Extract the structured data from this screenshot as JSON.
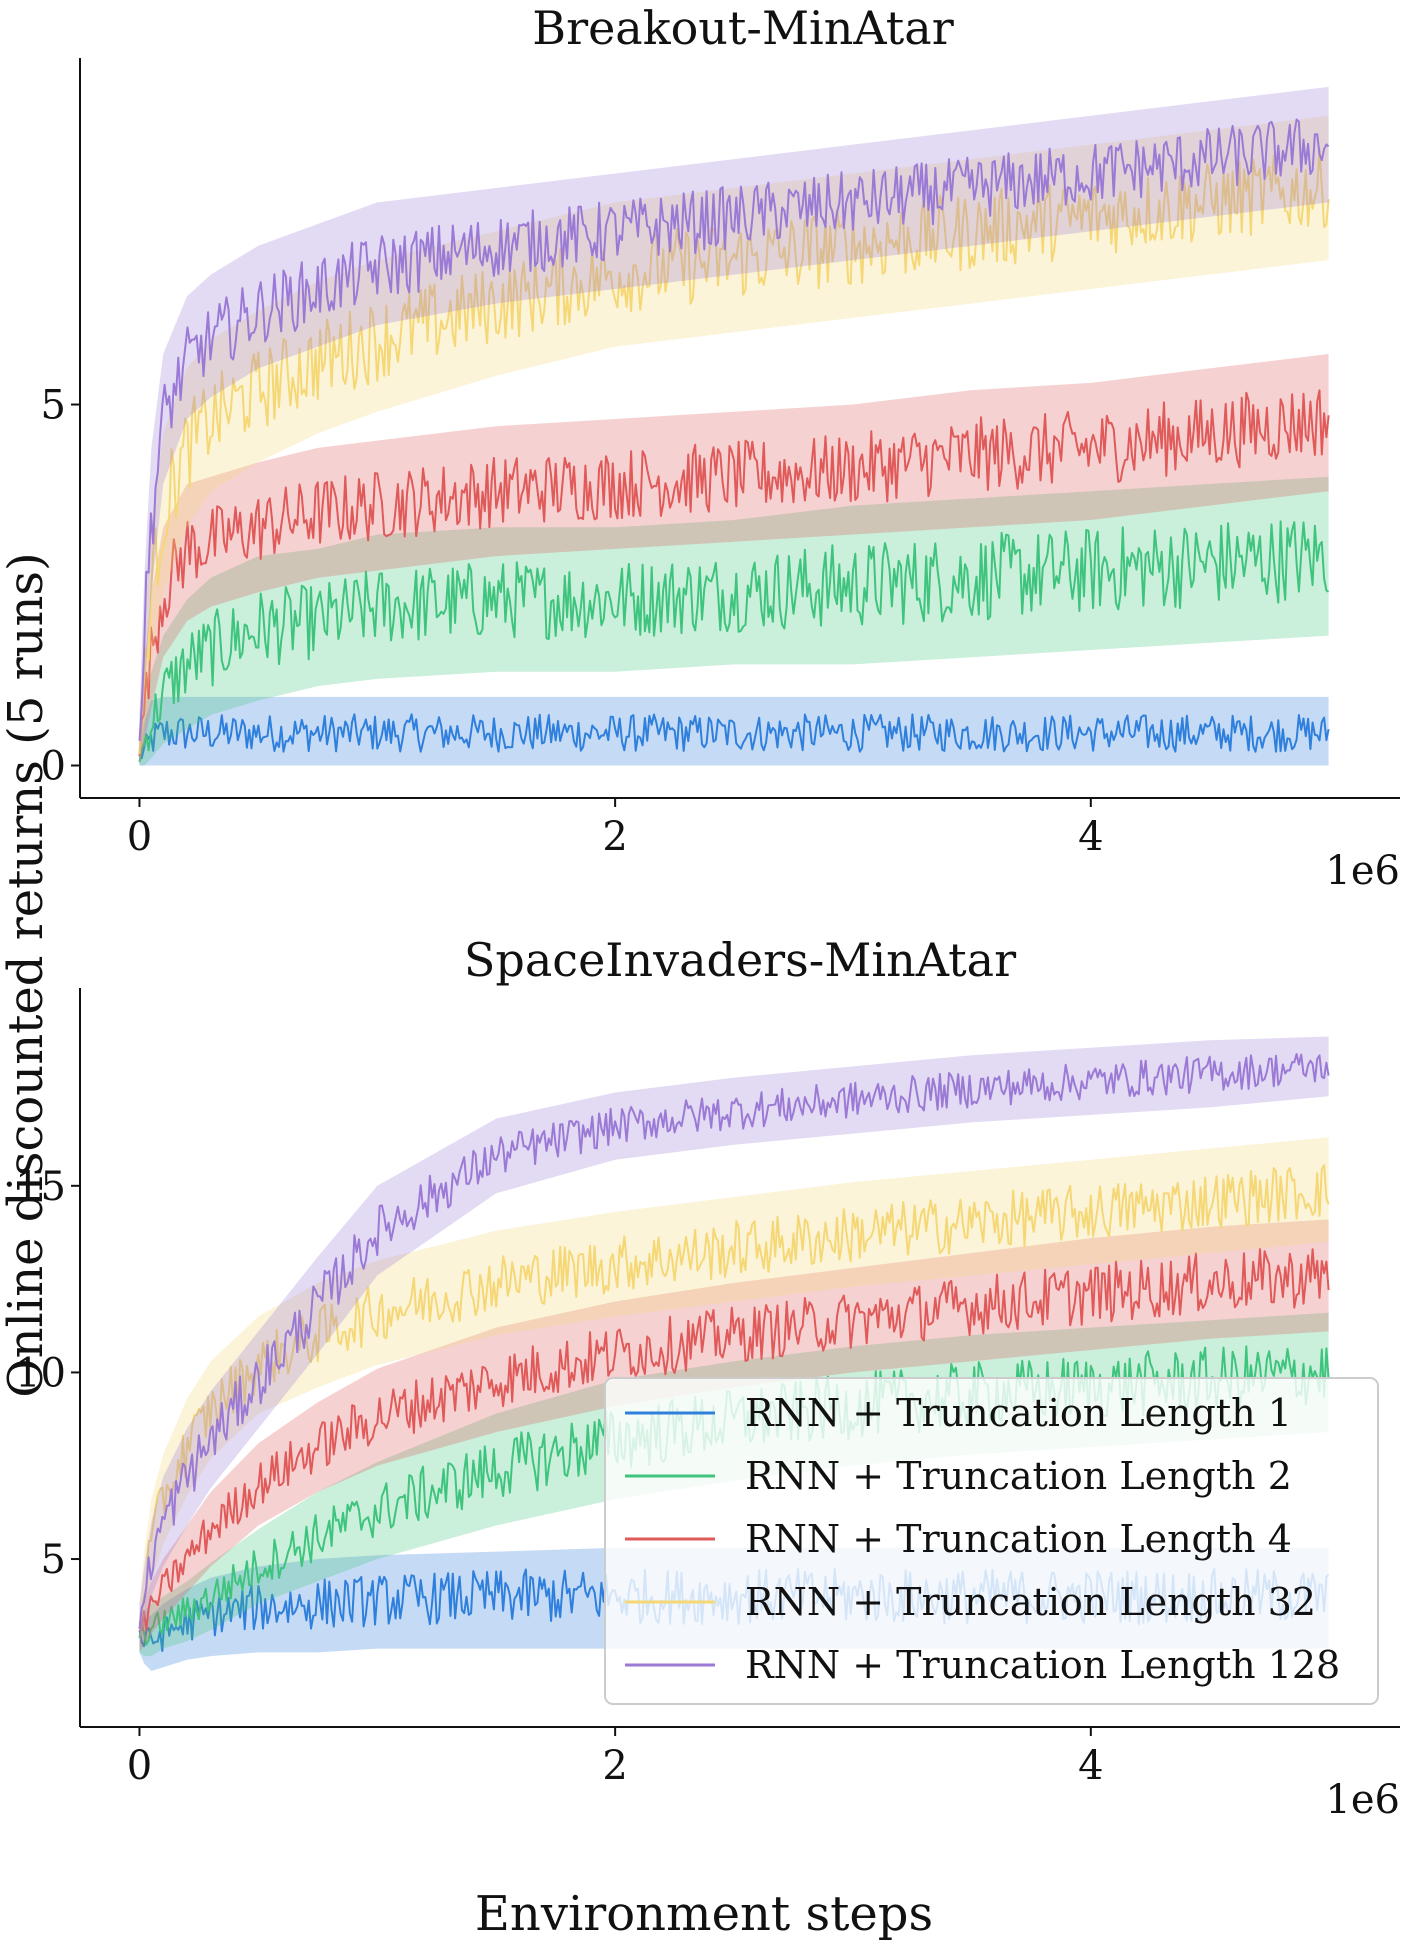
{
  "figure": {
    "ylabel": "Online discounted returns (5 runs)",
    "xlabel": "Environment steps"
  },
  "legend": {
    "placement": "lower-right of bottom panel",
    "entries": [
      "RNN + Truncation Length 1",
      "RNN + Truncation Length 2",
      "RNN + Truncation Length 4",
      "RNN + Truncation Length 32",
      "RNN + Truncation Length 128"
    ]
  },
  "colors": {
    "len1": "#2f7fdc",
    "len2": "#3fc47e",
    "len4": "#e05a5a",
    "len32": "#f5d775",
    "len128": "#9b7ad6"
  },
  "chart_data": [
    {
      "type": "line",
      "title": "Breakout-MinAtar",
      "xlabel": "",
      "ylabel": "",
      "x_scale_label": "1e6",
      "xlim": [
        -0.25,
        5.3
      ],
      "ylim": [
        -0.45,
        9.8
      ],
      "xticks": [
        0,
        2,
        4
      ],
      "xtick_labels": [
        "0",
        "2",
        "4"
      ],
      "yticks": [
        0,
        5
      ],
      "ytick_labels": [
        "0",
        "5"
      ],
      "grid": false,
      "x": [
        0,
        0.02,
        0.05,
        0.1,
        0.2,
        0.3,
        0.5,
        0.75,
        1.0,
        1.5,
        2.0,
        2.5,
        3.0,
        3.5,
        4.0,
        4.5,
        5.0
      ],
      "series": [
        {
          "name": "RNN + Truncation Length 1",
          "color_key": "len1",
          "mean": [
            0.1,
            0.2,
            0.35,
            0.45,
            0.45,
            0.45,
            0.45,
            0.45,
            0.45,
            0.45,
            0.45,
            0.45,
            0.45,
            0.45,
            0.45,
            0.45,
            0.45
          ],
          "lower": [
            0,
            0,
            0,
            0,
            0,
            0,
            0,
            0,
            0,
            0,
            0,
            0,
            0,
            0,
            0,
            0,
            0
          ],
          "upper": [
            0.3,
            0.6,
            0.9,
            0.95,
            0.95,
            0.95,
            0.95,
            0.95,
            0.95,
            0.95,
            0.95,
            0.95,
            0.95,
            0.95,
            0.95,
            0.95,
            0.95
          ]
        },
        {
          "name": "RNN + Truncation Length 2",
          "color_key": "len2",
          "mean": [
            0.1,
            0.3,
            0.6,
            1.0,
            1.4,
            1.6,
            1.9,
            2.0,
            2.2,
            2.3,
            2.3,
            2.4,
            2.5,
            2.6,
            2.7,
            2.8,
            2.9
          ],
          "lower": [
            0,
            0,
            0.1,
            0.3,
            0.5,
            0.7,
            0.9,
            1.1,
            1.2,
            1.3,
            1.3,
            1.4,
            1.4,
            1.5,
            1.6,
            1.7,
            1.8
          ],
          "upper": [
            0.3,
            0.8,
            1.3,
            1.8,
            2.3,
            2.6,
            2.9,
            3.0,
            3.2,
            3.3,
            3.3,
            3.4,
            3.6,
            3.7,
            3.8,
            3.9,
            4.0
          ]
        },
        {
          "name": "RNN + Truncation Length 4",
          "color_key": "len4",
          "mean": [
            0.2,
            0.8,
            1.6,
            2.4,
            3.0,
            3.1,
            3.3,
            3.5,
            3.6,
            3.8,
            3.9,
            4.0,
            4.1,
            4.3,
            4.4,
            4.6,
            4.8
          ],
          "lower": [
            0,
            0.3,
            0.8,
            1.5,
            2.0,
            2.2,
            2.4,
            2.6,
            2.7,
            2.9,
            3.0,
            3.1,
            3.2,
            3.3,
            3.4,
            3.6,
            3.8
          ],
          "upper": [
            0.5,
            1.4,
            2.4,
            3.3,
            3.9,
            4.0,
            4.2,
            4.4,
            4.5,
            4.7,
            4.8,
            4.9,
            5.0,
            5.2,
            5.3,
            5.5,
            5.7
          ]
        },
        {
          "name": "RNN + Truncation Length 32",
          "color_key": "len32",
          "mean": [
            0.2,
            1.2,
            2.4,
            3.5,
            4.4,
            4.8,
            5.2,
            5.6,
            5.9,
            6.4,
            6.8,
            7.0,
            7.2,
            7.4,
            7.6,
            7.8,
            8.0
          ],
          "lower": [
            0,
            0.5,
            1.4,
            2.4,
            3.3,
            3.8,
            4.2,
            4.6,
            4.9,
            5.4,
            5.8,
            6.0,
            6.2,
            6.4,
            6.6,
            6.8,
            7.0
          ],
          "upper": [
            0.6,
            1.9,
            3.4,
            4.6,
            5.5,
            5.9,
            6.3,
            6.7,
            7.0,
            7.4,
            7.8,
            8.0,
            8.2,
            8.4,
            8.6,
            8.8,
            9.0
          ]
        },
        {
          "name": "RNN + Truncation Length 128",
          "color_key": "len128",
          "mean": [
            0.3,
            1.8,
            3.4,
            4.8,
            5.6,
            5.9,
            6.3,
            6.6,
            6.9,
            7.2,
            7.4,
            7.6,
            7.8,
            8.0,
            8.2,
            8.4,
            8.6
          ],
          "lower": [
            0,
            1.0,
            2.4,
            3.9,
            4.8,
            5.1,
            5.5,
            5.8,
            6.1,
            6.4,
            6.6,
            6.8,
            7.0,
            7.2,
            7.4,
            7.6,
            7.8
          ],
          "upper": [
            0.7,
            2.6,
            4.4,
            5.7,
            6.5,
            6.8,
            7.2,
            7.5,
            7.8,
            8.0,
            8.2,
            8.4,
            8.6,
            8.8,
            9.0,
            9.2,
            9.4
          ]
        }
      ]
    },
    {
      "type": "line",
      "title": "SpaceInvaders-MinAtar",
      "xlabel": "",
      "ylabel": "",
      "x_scale_label": "1e6",
      "xlim": [
        -0.25,
        5.3
      ],
      "ylim": [
        0.5,
        20.3
      ],
      "xticks": [
        0,
        2,
        4
      ],
      "xtick_labels": [
        "0",
        "2",
        "4"
      ],
      "yticks": [
        5,
        10,
        15
      ],
      "ytick_labels": [
        "5",
        "10",
        "15"
      ],
      "grid": false,
      "x": [
        0,
        0.02,
        0.05,
        0.1,
        0.2,
        0.3,
        0.5,
        0.75,
        1.0,
        1.5,
        2.0,
        2.5,
        3.0,
        3.5,
        4.0,
        4.5,
        5.0
      ],
      "series": [
        {
          "name": "RNN + Truncation Length 1",
          "color_key": "len1",
          "mean": [
            3.0,
            2.8,
            2.8,
            3.0,
            3.3,
            3.5,
            3.7,
            3.8,
            3.9,
            4.0,
            4.0,
            4.0,
            4.0,
            4.0,
            4.0,
            4.0,
            4.0
          ],
          "lower": [
            2.5,
            2.2,
            2.0,
            2.1,
            2.3,
            2.4,
            2.5,
            2.5,
            2.6,
            2.6,
            2.6,
            2.6,
            2.6,
            2.6,
            2.6,
            2.6,
            2.6
          ],
          "upper": [
            3.5,
            3.4,
            3.5,
            3.8,
            4.2,
            4.5,
            4.8,
            5.0,
            5.1,
            5.2,
            5.3,
            5.3,
            5.3,
            5.3,
            5.3,
            5.3,
            5.3
          ]
        },
        {
          "name": "RNN + Truncation Length 2",
          "color_key": "len2",
          "mean": [
            3.0,
            3.0,
            3.1,
            3.3,
            3.6,
            4.0,
            4.8,
            5.6,
            6.3,
            7.4,
            8.2,
            8.7,
            9.1,
            9.4,
            9.6,
            9.8,
            10.0
          ],
          "lower": [
            2.5,
            2.4,
            2.4,
            2.6,
            2.8,
            3.1,
            3.8,
            4.4,
            5.0,
            5.9,
            6.6,
            7.1,
            7.5,
            7.8,
            8.0,
            8.2,
            8.4
          ],
          "upper": [
            3.5,
            3.6,
            3.8,
            4.0,
            4.4,
            4.9,
            5.8,
            6.8,
            7.6,
            8.9,
            9.8,
            10.3,
            10.7,
            11.0,
            11.2,
            11.4,
            11.6
          ]
        },
        {
          "name": "RNN + Truncation Length 4",
          "color_key": "len4",
          "mean": [
            3.0,
            3.3,
            3.7,
            4.2,
            5.0,
            5.8,
            7.0,
            8.0,
            8.8,
            9.8,
            10.5,
            11.0,
            11.4,
            11.8,
            12.1,
            12.4,
            12.6
          ],
          "lower": [
            2.5,
            2.7,
            3.0,
            3.4,
            4.1,
            4.8,
            5.9,
            6.8,
            7.5,
            8.4,
            9.1,
            9.6,
            10.0,
            10.3,
            10.6,
            10.9,
            11.1
          ],
          "upper": [
            3.5,
            3.9,
            4.4,
            5.0,
            5.9,
            6.8,
            8.1,
            9.2,
            10.1,
            11.2,
            11.9,
            12.4,
            12.8,
            13.2,
            13.6,
            13.9,
            14.1
          ]
        },
        {
          "name": "RNN + Truncation Length 32",
          "color_key": "len32",
          "mean": [
            3.2,
            4.3,
            5.5,
            6.6,
            8.0,
            9.0,
            10.2,
            11.0,
            11.6,
            12.4,
            12.9,
            13.3,
            13.7,
            14.0,
            14.3,
            14.6,
            14.9
          ],
          "lower": [
            2.6,
            3.4,
            4.4,
            5.4,
            6.7,
            7.7,
            8.9,
            9.6,
            10.2,
            11.0,
            11.5,
            11.9,
            12.3,
            12.6,
            12.9,
            13.2,
            13.5
          ],
          "upper": [
            3.8,
            5.2,
            6.6,
            7.8,
            9.3,
            10.3,
            11.5,
            12.4,
            13.0,
            13.8,
            14.3,
            14.7,
            15.1,
            15.4,
            15.7,
            16.0,
            16.3
          ]
        },
        {
          "name": "RNN + Truncation Length 128",
          "color_key": "len128",
          "mean": [
            3.2,
            4.0,
            5.0,
            6.0,
            7.2,
            8.2,
            9.8,
            11.8,
            13.8,
            15.8,
            16.6,
            17.0,
            17.3,
            17.6,
            17.8,
            18.0,
            18.2
          ],
          "lower": [
            2.6,
            3.2,
            4.0,
            4.8,
            5.9,
            6.9,
            8.5,
            10.5,
            12.6,
            14.8,
            15.7,
            16.1,
            16.4,
            16.7,
            16.9,
            17.1,
            17.4
          ],
          "upper": [
            3.8,
            4.8,
            6.0,
            7.2,
            8.5,
            9.5,
            11.1,
            13.1,
            15.0,
            16.8,
            17.5,
            17.9,
            18.2,
            18.5,
            18.7,
            18.9,
            19.0
          ]
        }
      ]
    }
  ]
}
